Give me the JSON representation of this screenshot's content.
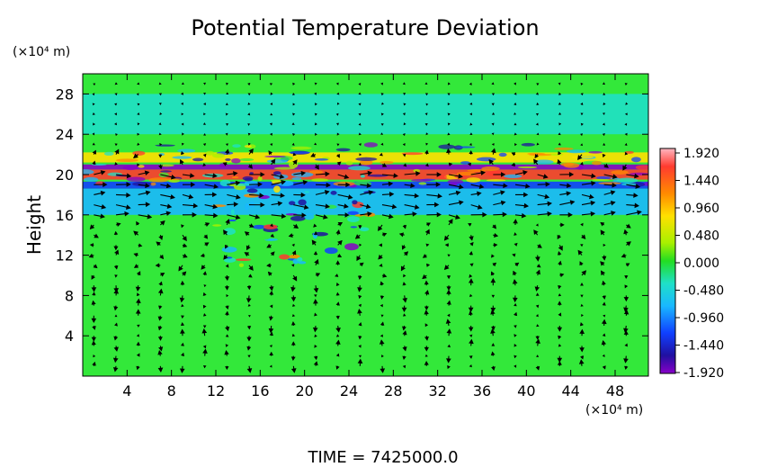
{
  "chart_data": {
    "type": "heatmap",
    "title": "Potential Temperature Deviation",
    "ylabel": "Height",
    "y_unit": "(×10⁴ m)",
    "x_unit": "(×10⁴ m)",
    "xlabel": "",
    "xlim": [
      0,
      51
    ],
    "ylim": [
      0,
      30
    ],
    "x_ticks": [
      "4",
      "8",
      "12",
      "16",
      "20",
      "24",
      "28",
      "32",
      "36",
      "40",
      "44",
      "48"
    ],
    "y_ticks": [
      "4",
      "8",
      "12",
      "16",
      "20",
      "24",
      "28"
    ],
    "colorbar": {
      "ticks": [
        "1.920",
        "1.440",
        "0.960",
        "0.480",
        "0.000",
        "-0.480",
        "-0.960",
        "-1.440",
        "-1.920"
      ],
      "range": [
        -1.92,
        1.92
      ]
    },
    "bands": [
      {
        "y0": 19.5,
        "y1": 20.5,
        "value": 1.9
      },
      {
        "y0": 20.5,
        "y1": 21.0,
        "value": -1.8
      },
      {
        "y0": 18.6,
        "y1": 19.3,
        "value": -1.2
      },
      {
        "y0": 21.2,
        "y1": 22.2,
        "value": 0.9
      },
      {
        "y0": 16.0,
        "y1": 18.6,
        "value": -0.5
      },
      {
        "y0": 24.0,
        "y1": 28.0,
        "value": -0.3
      }
    ],
    "footer": "TIME = 7425000.0"
  }
}
